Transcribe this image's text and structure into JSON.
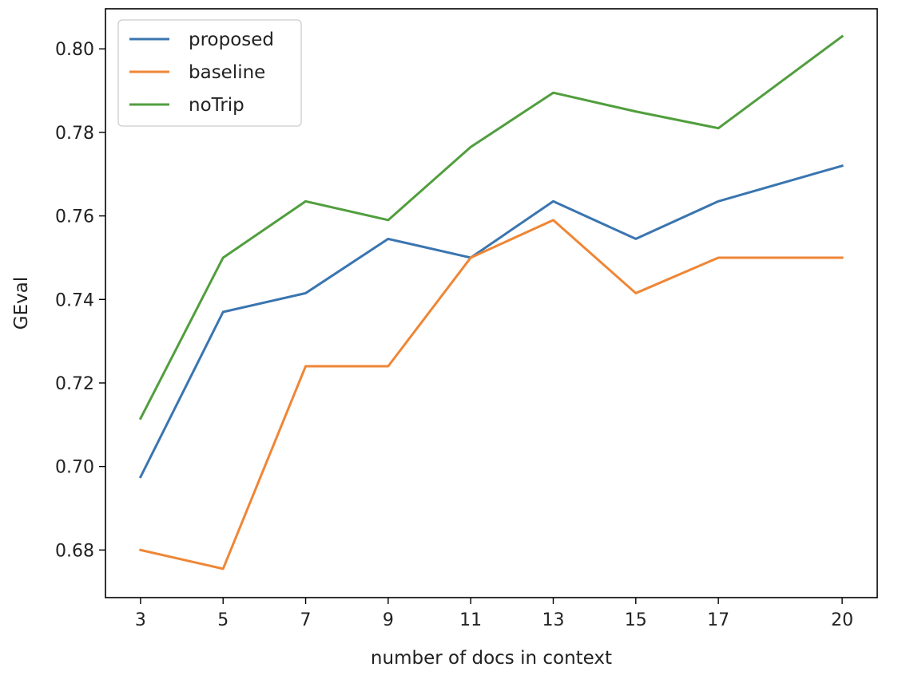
{
  "chart_data": {
    "type": "line",
    "title": "",
    "xlabel": "number of docs in context",
    "ylabel": "GEval",
    "x": [
      3,
      5,
      7,
      9,
      11,
      13,
      15,
      17,
      20
    ],
    "x_ticks": [
      3,
      5,
      7,
      9,
      11,
      13,
      15,
      17,
      20
    ],
    "x_tick_labels": [
      "3",
      "5",
      "7",
      "9",
      "11",
      "13",
      "15",
      "17",
      "20"
    ],
    "y_ticks": [
      0.68,
      0.7,
      0.72,
      0.74,
      0.76,
      0.78,
      0.8
    ],
    "y_tick_labels": [
      "0.68",
      "0.70",
      "0.72",
      "0.74",
      "0.76",
      "0.78",
      "0.80"
    ],
    "xlim": [
      2.15,
      20.85
    ],
    "ylim": [
      0.6686,
      0.8096
    ],
    "grid": false,
    "legend_position": "top-left",
    "series": [
      {
        "name": "proposed",
        "color": "#3a75b0",
        "values": [
          0.6975,
          0.737,
          0.7415,
          0.7545,
          0.75,
          0.7635,
          0.7545,
          0.7635,
          0.772
        ]
      },
      {
        "name": "baseline",
        "color": "#ef8636",
        "values": [
          0.68,
          0.6755,
          0.724,
          0.724,
          0.75,
          0.759,
          0.7415,
          0.75,
          0.75
        ]
      },
      {
        "name": "noTrip",
        "color": "#519e3e",
        "values": [
          0.7115,
          0.75,
          0.7635,
          0.759,
          0.7765,
          0.7895,
          0.785,
          0.781,
          0.803
        ]
      }
    ]
  }
}
